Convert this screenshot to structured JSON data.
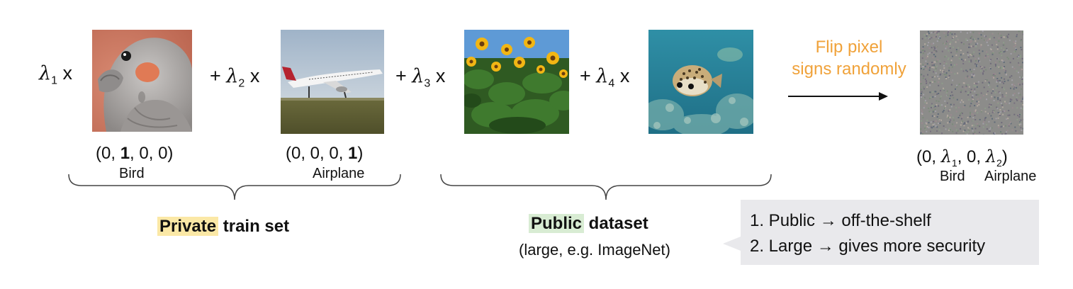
{
  "coefficients": {
    "c1_prefix": "",
    "c1_sub": "1",
    "c1_suffix": " x",
    "c2_prefix": "+ ",
    "c2_sub": "2",
    "c2_suffix": " x",
    "c3_prefix": "+ ",
    "c3_sub": "3",
    "c3_suffix": " x",
    "c4_prefix": "+ ",
    "c4_sub": "4",
    "c4_suffix": " x"
  },
  "private_images": [
    {
      "vector_open": "(0, ",
      "vector_bold": "1",
      "vector_close": ", 0, 0)",
      "class_label": "Bird"
    },
    {
      "vector_open": "(0, 0, 0, ",
      "vector_bold": "1",
      "vector_close": ")",
      "class_label": "Airplane"
    }
  ],
  "output": {
    "vector_open": "(0, ",
    "vector_l1_sub": "1",
    "vector_mid": ", 0, ",
    "vector_l2_sub": "2",
    "vector_close": ")",
    "label_bird": "Bird",
    "label_airplane": "Airplane"
  },
  "flip": {
    "line1": "Flip pixel",
    "line2": "signs randomly",
    "color": "#f0a23a"
  },
  "private_group": {
    "highlight": "Private",
    "rest": " train set",
    "highlight_color": "#fbe8a6"
  },
  "public_group": {
    "highlight": "Public",
    "rest": " dataset",
    "note": "(large, e.g. ImageNet)",
    "highlight_color": "#d8ecd3"
  },
  "callout": {
    "line1": "1. Public → off-the-shelf",
    "line2": "2. Large → gives more security",
    "bg_color": "#e9e9ec"
  },
  "icons": [
    "bird-photo",
    "airplane-photo",
    "sunflower-photo",
    "pufferfish-photo",
    "noise-image",
    "arrow-right-icon"
  ]
}
